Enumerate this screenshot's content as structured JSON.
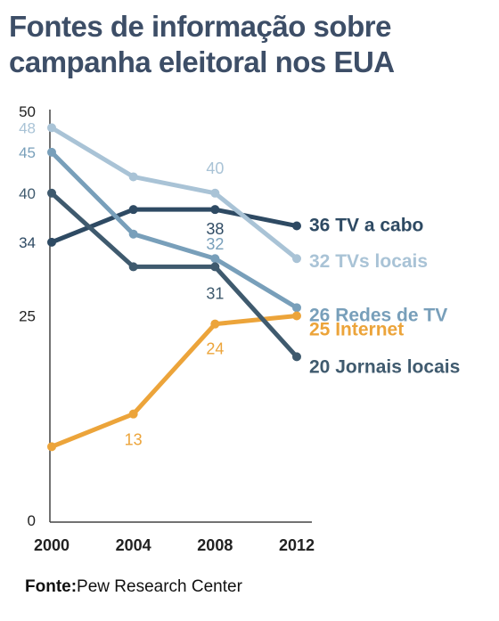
{
  "title_line1": "Fontes de informação sobre",
  "title_line2": "campanha eleitoral nos EUA",
  "source_label": "Fonte:",
  "source_text": "Pew Research Center",
  "chart_data": {
    "type": "line",
    "x": [
      2000,
      2004,
      2008,
      2012
    ],
    "xticks": [
      "2000",
      "2004",
      "2008",
      "2012"
    ],
    "ylim": [
      0,
      50
    ],
    "yticks": [
      "0",
      "25",
      "34",
      "40",
      "45",
      "48",
      "50"
    ],
    "series": [
      {
        "name": "TV a cabo",
        "end_label": "36 TV a cabo",
        "color": "#2e4a63",
        "values": [
          34,
          38,
          38,
          36
        ],
        "labels": [
          "",
          "",
          "38",
          ""
        ]
      },
      {
        "name": "TVs locais",
        "end_label": "32 TVs locais",
        "color": "#a9c3d6",
        "values": [
          48,
          42,
          40,
          32
        ],
        "labels": [
          "",
          "",
          "40",
          ""
        ]
      },
      {
        "name": "Redes de TV",
        "end_label": "26 Redes de TV",
        "color": "#789fba",
        "values": [
          45,
          35,
          32,
          26
        ],
        "labels": [
          "",
          "",
          "32",
          ""
        ]
      },
      {
        "name": "Internet",
        "end_label": "25 Internet",
        "color": "#eca43a",
        "values": [
          9,
          13,
          24,
          25
        ],
        "labels": [
          "",
          "13",
          "24",
          ""
        ]
      },
      {
        "name": "Jornais locais",
        "end_label": "20 Jornais locais",
        "color": "#3f5a6e",
        "values": [
          40,
          31,
          31,
          20
        ],
        "labels": [
          "",
          "",
          "31",
          ""
        ]
      }
    ]
  }
}
